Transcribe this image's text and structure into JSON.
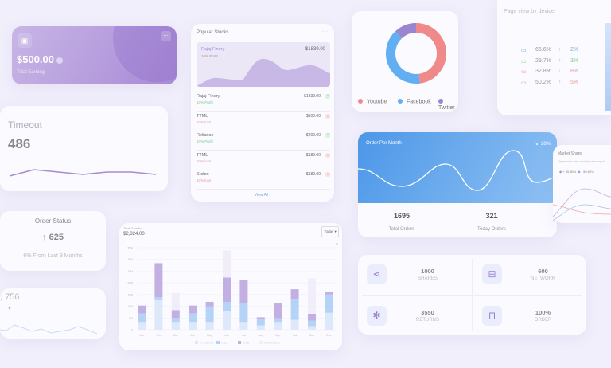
{
  "earning": {
    "amount": "$500.00",
    "label": "Total Earning",
    "icon": "wallet-icon"
  },
  "timeout": {
    "title": "Timeout",
    "value": "486",
    "sparkline": [
      30,
      22,
      25,
      28,
      25,
      25,
      28
    ]
  },
  "stocks": {
    "title": "Popular Stocks",
    "featured": {
      "name": "Rajaj Finery",
      "sub": "10% Profit",
      "price": "$1839.00"
    },
    "items": [
      {
        "name": "Rajaj Finery",
        "sub": "10% Profit",
        "price": "$1839.00",
        "trend": "up"
      },
      {
        "name": "TTML",
        "sub": "10% loss",
        "price": "$100.00",
        "trend": "down"
      },
      {
        "name": "Reliance",
        "sub": "10% Profit",
        "price": "$200.00",
        "trend": "up"
      },
      {
        "name": "TTML",
        "sub": "10% loss",
        "price": "$189.00",
        "trend": "down"
      },
      {
        "name": "Stolon",
        "sub": "10% loss",
        "price": "$189.00",
        "trend": "down"
      }
    ],
    "view_all": "View All"
  },
  "traffic": {
    "legend": [
      {
        "name": "Youtube",
        "color": "#f08a8a",
        "value": 48
      },
      {
        "name": "Facebook",
        "color": "#62aef2",
        "value": 40
      },
      {
        "name": "Twitter",
        "color": "#9b85d0",
        "value": 12
      }
    ]
  },
  "page_view": {
    "title": "Page view by device",
    "rows": [
      {
        "icon": "desktop-icon",
        "share": "66.6%",
        "change": "2%",
        "dir": "up",
        "color": "#7aa7e0"
      },
      {
        "icon": "mobile-icon",
        "share": "29.7%",
        "change": "3%",
        "dir": "up",
        "color": "#7ecb94"
      },
      {
        "icon": "tablet-icon",
        "share": "32.8%",
        "change": "8%",
        "dir": "down",
        "color": "#e59a9a"
      },
      {
        "icon": "laptop-icon",
        "share": "50.2%",
        "change": "5%",
        "dir": "up",
        "color": "#e59a9a"
      }
    ]
  },
  "order_month": {
    "title": "Order Per Month",
    "percent": "28%",
    "total": "1695",
    "total_label": "Total Orders",
    "today": "321",
    "today_label": "Today Orders"
  },
  "market": {
    "title": "Market Share",
    "sub": "Department wise monthly sales report",
    "a": "+ 45.36%",
    "b": "- 50.69%"
  },
  "order_status": {
    "title": "Order Status",
    "value": "625",
    "sub": "6% From Last 3 Months"
  },
  "mini": {
    "value": ", 756"
  },
  "growth": {
    "title": "Total Growth",
    "value": "$2,324.00",
    "period": "Today"
  },
  "chart_data": {
    "type": "bar",
    "stacked": true,
    "categories": [
      "Jan",
      "Feb",
      "Mar",
      "Apr",
      "May",
      "Jun",
      "Jul",
      "Aug",
      "Sep",
      "Oct",
      "Nov",
      "Dec"
    ],
    "yticks": [
      "0",
      "5M",
      "10M",
      "15M",
      "20M",
      "25M",
      "30M",
      "35M"
    ],
    "ylim": [
      0,
      35
    ],
    "series": [
      {
        "name": "Investment",
        "color": "#dde8fb",
        "values": [
          3.3,
          12.6,
          3.3,
          3.3,
          3.3,
          7.8,
          3.3,
          1.8,
          3.3,
          4.2,
          1.5,
          7.2
        ]
      },
      {
        "name": "Loss",
        "color": "#b5d3f6",
        "values": [
          3.6,
          1.3,
          1.7,
          3.6,
          6.6,
          4,
          7.9,
          2.6,
          1.6,
          8.7,
          2.4,
          7.8
        ]
      },
      {
        "name": "Profit",
        "color": "#c3b0e3",
        "values": [
          3.4,
          14.5,
          3.4,
          3.4,
          2,
          10.5,
          10.2,
          0.9,
          6.4,
          4.4,
          2.9,
          1
        ]
      },
      {
        "name": "Maintenance",
        "color": "#f1edf9",
        "values": [
          0,
          0,
          7.3,
          0,
          0,
          11.6,
          0,
          0,
          0,
          0,
          15.1,
          0
        ]
      }
    ]
  },
  "stats": [
    {
      "icon": "share-icon",
      "value": "1000",
      "label": "SHARES"
    },
    {
      "icon": "router-icon",
      "value": "600",
      "label": "NETWORK"
    },
    {
      "icon": "atom-icon",
      "value": "3550",
      "label": "RETURNS"
    },
    {
      "icon": "bag-icon",
      "value": "100%",
      "label": "ORDER"
    }
  ]
}
